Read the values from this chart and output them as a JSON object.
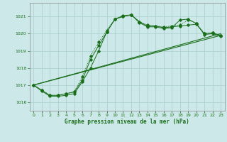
{
  "xlabel": "Graphe pression niveau de la mer (hPa)",
  "bg_color": "#cce8e8",
  "grid_color": "#aacece",
  "line_color": "#1a6e1a",
  "ylim": [
    1015.5,
    1021.8
  ],
  "yticks": [
    1016,
    1017,
    1018,
    1019,
    1020,
    1021
  ],
  "xlim": [
    -0.5,
    23.5
  ],
  "xticks": [
    0,
    1,
    2,
    3,
    4,
    5,
    6,
    7,
    8,
    9,
    10,
    11,
    12,
    13,
    14,
    15,
    16,
    17,
    18,
    19,
    20,
    21,
    22,
    23
  ],
  "series1": {
    "x": [
      0,
      1,
      2,
      3,
      4,
      5,
      6,
      7,
      8,
      9,
      10,
      11,
      12,
      13,
      14,
      15,
      16,
      17,
      18,
      19,
      20,
      21,
      22,
      23
    ],
    "y": [
      1017.0,
      1016.7,
      1016.4,
      1016.4,
      1016.5,
      1016.6,
      1017.5,
      1018.7,
      1019.5,
      1020.2,
      1020.85,
      1021.0,
      1021.1,
      1020.7,
      1020.5,
      1020.45,
      1020.4,
      1020.45,
      1020.5,
      1020.8,
      1020.6,
      1020.0,
      1020.05,
      1019.9
    ]
  },
  "series2": {
    "x": [
      0,
      1,
      2,
      3,
      4,
      5,
      6,
      7,
      8,
      9,
      10,
      11,
      12,
      13,
      14,
      15,
      16,
      17,
      18,
      19,
      20,
      21,
      22,
      23
    ],
    "y": [
      1017.0,
      1016.7,
      1016.4,
      1016.4,
      1016.5,
      1016.6,
      1017.3,
      1018.5,
      1019.3,
      1020.1,
      1020.85,
      1021.0,
      1021.1,
      1020.7,
      1020.45,
      1020.45,
      1020.35,
      1020.4,
      1020.45,
      1020.5,
      1020.55,
      1020.0,
      1020.05,
      1019.9
    ]
  },
  "series3": {
    "x": [
      0,
      1,
      2,
      3,
      4,
      5,
      6,
      7,
      8,
      9,
      10,
      11,
      12,
      13,
      14,
      15,
      16,
      17,
      18,
      19,
      20,
      21,
      22,
      23
    ],
    "y": [
      1017.0,
      1016.65,
      1016.35,
      1016.35,
      1016.4,
      1016.5,
      1017.2,
      1018.0,
      1019.0,
      1020.1,
      1020.85,
      1021.05,
      1021.1,
      1020.65,
      1020.4,
      1020.4,
      1020.3,
      1020.35,
      1020.8,
      1020.85,
      1020.6,
      1019.95,
      1020.0,
      1019.85
    ]
  },
  "series4": {
    "x": [
      0,
      23
    ],
    "y": [
      1017.0,
      1019.9
    ]
  },
  "series5": {
    "x": [
      0,
      23
    ],
    "y": [
      1017.0,
      1020.0
    ]
  }
}
